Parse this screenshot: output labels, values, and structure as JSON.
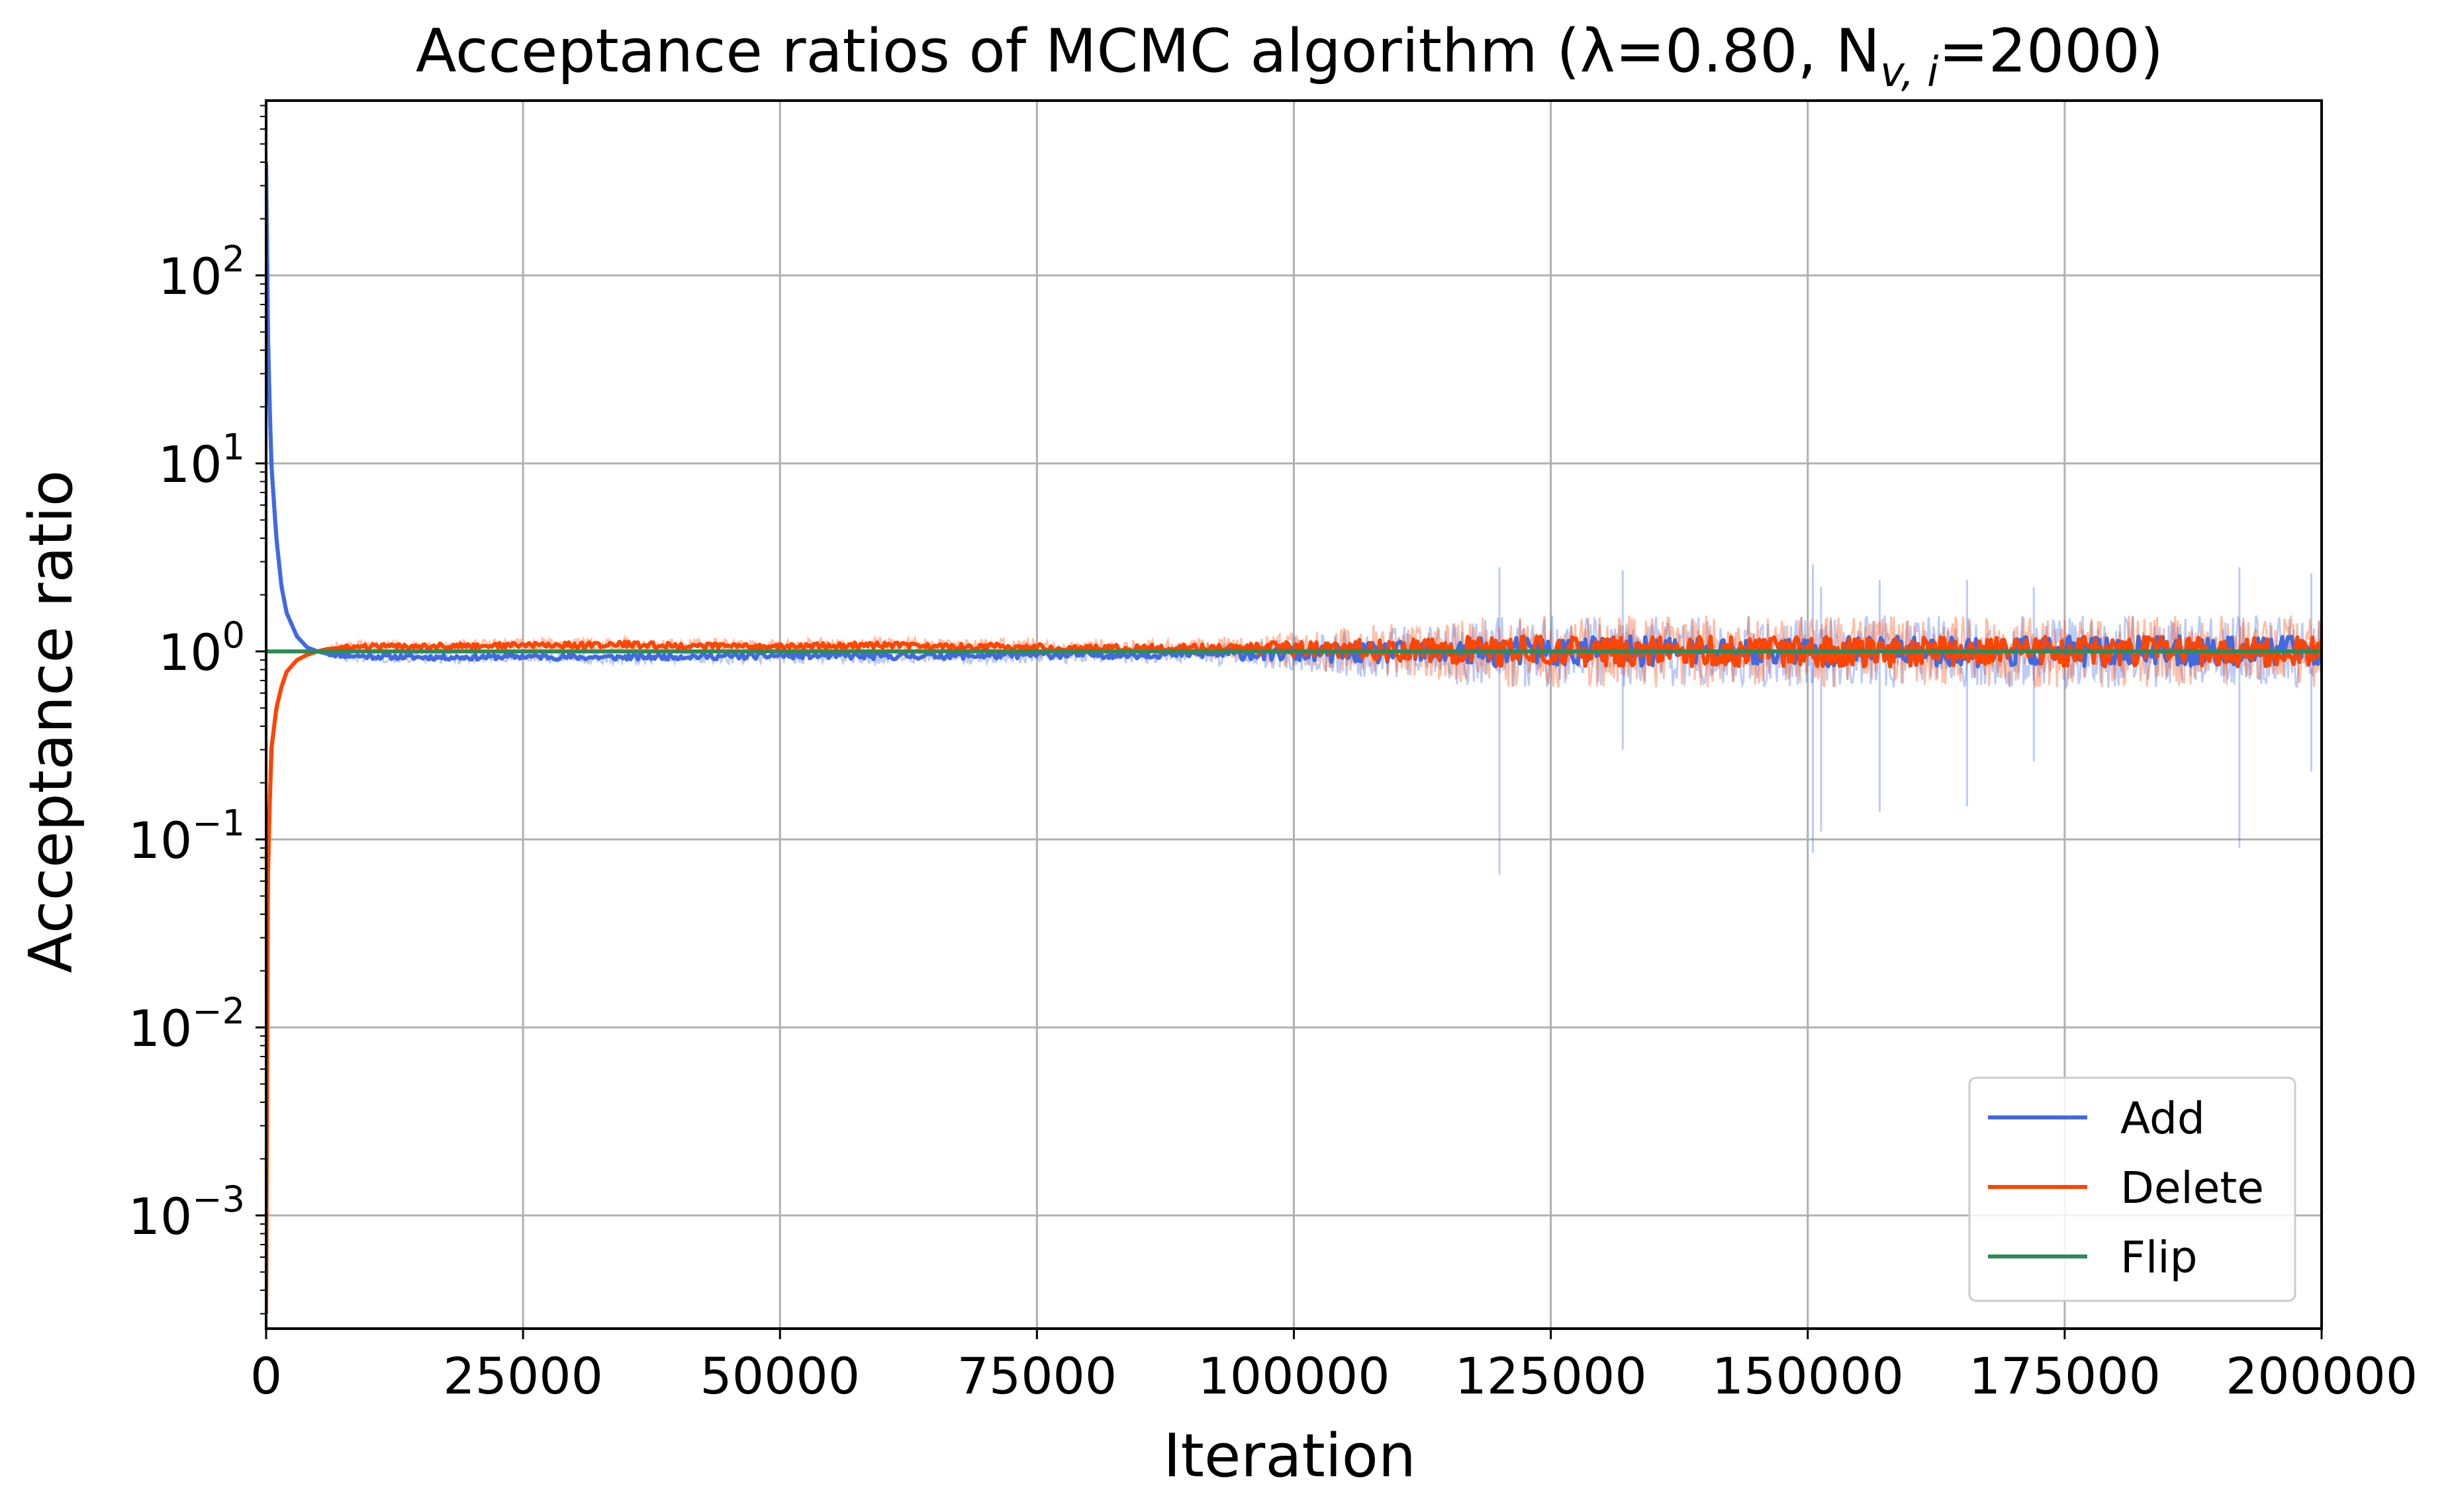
{
  "chart_data": {
    "type": "line",
    "title": "Acceptance ratios of MCMC algorithm (λ=0.80, N",
    "title_subscript": "v, i",
    "title_tail": "=2000)",
    "xlabel": "Iteration",
    "ylabel": "Acceptance ratio",
    "xlim": [
      0,
      200000
    ],
    "ylim": [
      0.00025,
      850
    ],
    "yscale": "log",
    "grid": true,
    "legend_position": "lower-right",
    "xticks": [
      {
        "value": 0,
        "label": "0"
      },
      {
        "value": 25000,
        "label": "25000"
      },
      {
        "value": 50000,
        "label": "50000"
      },
      {
        "value": 75000,
        "label": "75000"
      },
      {
        "value": 100000,
        "label": "100000"
      },
      {
        "value": 125000,
        "label": "125000"
      },
      {
        "value": 150000,
        "label": "150000"
      },
      {
        "value": 175000,
        "label": "175000"
      },
      {
        "value": 200000,
        "label": "200000"
      }
    ],
    "yticks": [
      {
        "value": 0.001,
        "base": "10",
        "exp": "−3"
      },
      {
        "value": 0.01,
        "base": "10",
        "exp": "−2"
      },
      {
        "value": 0.1,
        "base": "10",
        "exp": "−1"
      },
      {
        "value": 1,
        "base": "10",
        "exp": "0"
      },
      {
        "value": 10,
        "base": "10",
        "exp": "1"
      },
      {
        "value": 100,
        "base": "10",
        "exp": "2"
      }
    ],
    "series": [
      {
        "name": "Add",
        "color": "#4169e1",
        "x": [
          0,
          200,
          500,
          1000,
          1500,
          2000,
          3000,
          4000,
          5000,
          6000,
          8000,
          10000,
          15000,
          20000,
          25000,
          30000,
          35000,
          40000,
          45000,
          50000,
          55000,
          60000,
          65000,
          70000,
          75000,
          80000,
          85000,
          90000,
          95000,
          100000,
          105000,
          110000,
          115000,
          120000,
          125000,
          130000,
          135000,
          140000,
          145000,
          150000,
          155000,
          160000,
          165000,
          170000,
          175000,
          180000,
          185000,
          190000,
          195000,
          200000
        ],
        "values": [
          400,
          40,
          10,
          4,
          2.2,
          1.6,
          1.2,
          1.05,
          1.0,
          0.97,
          0.95,
          0.94,
          0.93,
          0.93,
          0.94,
          0.93,
          0.93,
          0.94,
          0.94,
          0.95,
          0.95,
          0.94,
          0.95,
          0.95,
          0.96,
          0.96,
          0.96,
          0.97,
          0.97,
          0.97,
          0.98,
          0.98,
          0.99,
          0.99,
          1.0,
          1.0,
          1.0,
          1.0,
          1.0,
          1.0,
          1.0,
          1.0,
          1.0,
          1.0,
          1.0,
          1.0,
          1.0,
          1.0,
          1.0,
          1.0
        ],
        "spikes": [
          {
            "x": 120000,
            "low": 0.065,
            "high": 2.8
          },
          {
            "x": 132000,
            "low": 0.3,
            "high": 2.7
          },
          {
            "x": 150500,
            "low": 0.085,
            "high": 2.9
          },
          {
            "x": 151300,
            "low": 0.11,
            "high": 2.2
          },
          {
            "x": 157000,
            "low": 0.14,
            "high": 2.4
          },
          {
            "x": 165500,
            "low": 0.15,
            "high": 2.4
          },
          {
            "x": 172000,
            "low": 0.26,
            "high": 2.2
          },
          {
            "x": 192000,
            "low": 0.09,
            "high": 2.8
          },
          {
            "x": 199000,
            "low": 0.23,
            "high": 2.6
          }
        ]
      },
      {
        "name": "Delete",
        "color": "#ff4500",
        "x": [
          0,
          100,
          200,
          500,
          1000,
          1500,
          2000,
          3000,
          4000,
          5000,
          6000,
          8000,
          10000,
          15000,
          20000,
          25000,
          30000,
          35000,
          40000,
          45000,
          50000,
          55000,
          60000,
          65000,
          70000,
          75000,
          80000,
          85000,
          90000,
          95000,
          100000,
          105000,
          110000,
          115000,
          120000,
          125000,
          130000,
          135000,
          140000,
          145000,
          150000,
          155000,
          160000,
          165000,
          170000,
          175000,
          180000,
          185000,
          190000,
          195000,
          200000
        ],
        "values": [
          0.0003,
          0.02,
          0.08,
          0.3,
          0.5,
          0.65,
          0.78,
          0.9,
          0.96,
          1.0,
          1.03,
          1.05,
          1.06,
          1.07,
          1.07,
          1.08,
          1.08,
          1.09,
          1.07,
          1.07,
          1.06,
          1.07,
          1.08,
          1.06,
          1.06,
          1.05,
          1.05,
          1.04,
          1.04,
          1.03,
          1.03,
          1.02,
          1.02,
          1.01,
          1.01,
          1.0,
          1.0,
          1.0,
          1.0,
          1.0,
          1.0,
          1.0,
          1.0,
          1.0,
          1.0,
          1.0,
          1.0,
          1.0,
          1.0,
          1.0,
          1.0
        ]
      },
      {
        "name": "Flip",
        "color": "#2e8b57",
        "x": [
          0,
          200000
        ],
        "values": [
          1.0,
          1.0
        ]
      }
    ]
  }
}
